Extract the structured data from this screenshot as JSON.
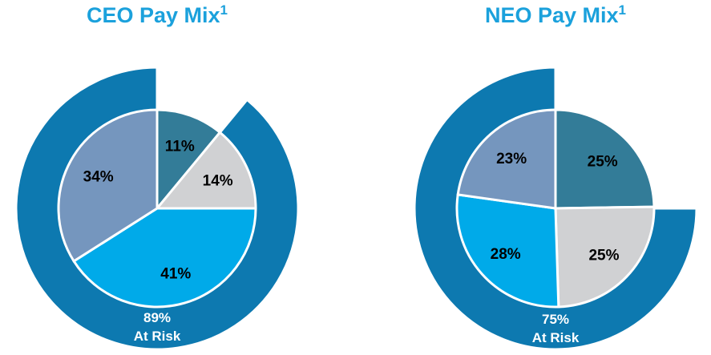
{
  "colors": {
    "title": "#1ba1dc",
    "ring": "#0d79b0",
    "ring_text": "#ffffff",
    "slice_stroke": "#ffffff",
    "label_text": "#000000",
    "slices": [
      "#337c98",
      "#d0d1d3",
      "#00aae9",
      "#7596be"
    ]
  },
  "chart_data": [
    {
      "type": "pie",
      "title": "CEO Pay Mix",
      "title_superscript": "1",
      "slices": [
        {
          "value": 11,
          "label": "11%"
        },
        {
          "value": 14,
          "label": "14%"
        },
        {
          "value": 41,
          "label": "41%"
        },
        {
          "value": 34,
          "label": "34%"
        }
      ],
      "outer_ring": {
        "value": 89,
        "label": "89%",
        "sublabel": "At Risk"
      }
    },
    {
      "type": "pie",
      "title": "NEO Pay Mix",
      "title_superscript": "1",
      "slices": [
        {
          "value": 25,
          "label": "25%"
        },
        {
          "value": 25,
          "label": "25%"
        },
        {
          "value": 28,
          "label": "28%"
        },
        {
          "value": 23,
          "label": "23%"
        }
      ],
      "outer_ring": {
        "value": 75,
        "label": "75%",
        "sublabel": "At Risk"
      }
    }
  ]
}
